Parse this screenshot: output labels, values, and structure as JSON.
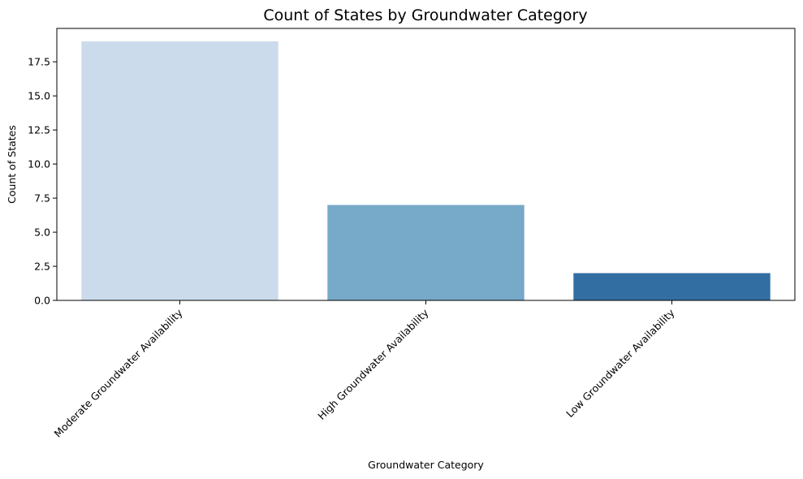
{
  "chart_data": {
    "type": "bar",
    "title": "Count of States by Groundwater Category",
    "xlabel": "Groundwater Category",
    "ylabel": "Count of States",
    "categories": [
      "Moderate Groundwater Availability",
      "High Groundwater Availability",
      "Low Groundwater Availability"
    ],
    "values": [
      19,
      7,
      2
    ],
    "colors": [
      "#cbdbeb",
      "#77a9c9",
      "#336ea3"
    ],
    "ylim": [
      0,
      19.95
    ],
    "yticks": [
      0.0,
      2.5,
      5.0,
      7.5,
      10.0,
      12.5,
      15.0,
      17.5
    ],
    "ytick_labels": [
      "0.0",
      "2.5",
      "5.0",
      "7.5",
      "10.0",
      "12.5",
      "15.0",
      "17.5"
    ],
    "grid": false,
    "legend": "none",
    "xtick_rotation_deg": 45
  }
}
